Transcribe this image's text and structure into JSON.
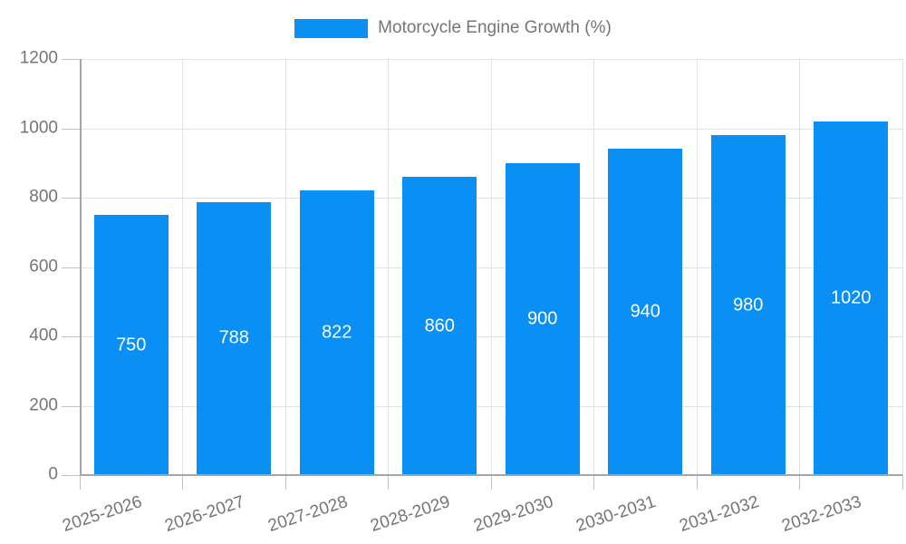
{
  "chart_data": {
    "type": "bar",
    "title": "",
    "legend": {
      "label": "Motorcycle Engine Growth (%)",
      "position": "top"
    },
    "categories": [
      "2025-2026",
      "2026-2027",
      "2027-2028",
      "2028-2029",
      "2029-2030",
      "2030-2031",
      "2031-2032",
      "2032-2033"
    ],
    "values": [
      750,
      788,
      822,
      860,
      900,
      940,
      980,
      1020
    ],
    "bar_value_labels": [
      "750",
      "788",
      "822",
      "860",
      "900",
      "940",
      "980",
      "1020"
    ],
    "xlabel": "",
    "ylabel": "",
    "ylim": [
      0,
      1200
    ],
    "yticks": [
      0,
      200,
      400,
      600,
      800,
      1000,
      1200
    ],
    "grid": true,
    "legend_position": "top",
    "colors": {
      "bar": "#0a8ff4",
      "bar_label": "#ffffff",
      "axis_text": "#757575",
      "gridline": "#e2e2e2",
      "axis_line": "#a6a6a6",
      "tick": "#c2c2c2",
      "background": "#ffffff"
    }
  }
}
